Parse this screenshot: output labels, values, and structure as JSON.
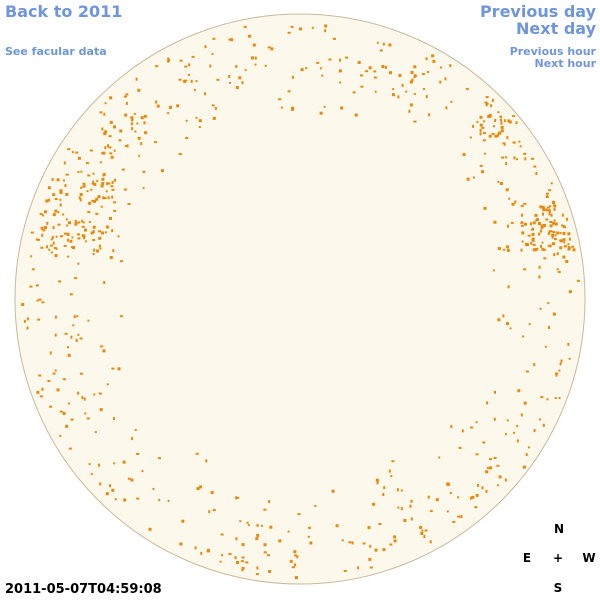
{
  "header": {
    "back_link": "Back to 2011",
    "facular_link": "See facular data",
    "previous_day": "Previous day",
    "next_day": "Next day",
    "previous_hour": "Previous hour",
    "next_hour": "Next hour"
  },
  "timestamp": "2011-05-07T04:59:08",
  "compass": {
    "north": "N",
    "east": "E",
    "center": "+",
    "west": "W",
    "south": "S"
  }
}
